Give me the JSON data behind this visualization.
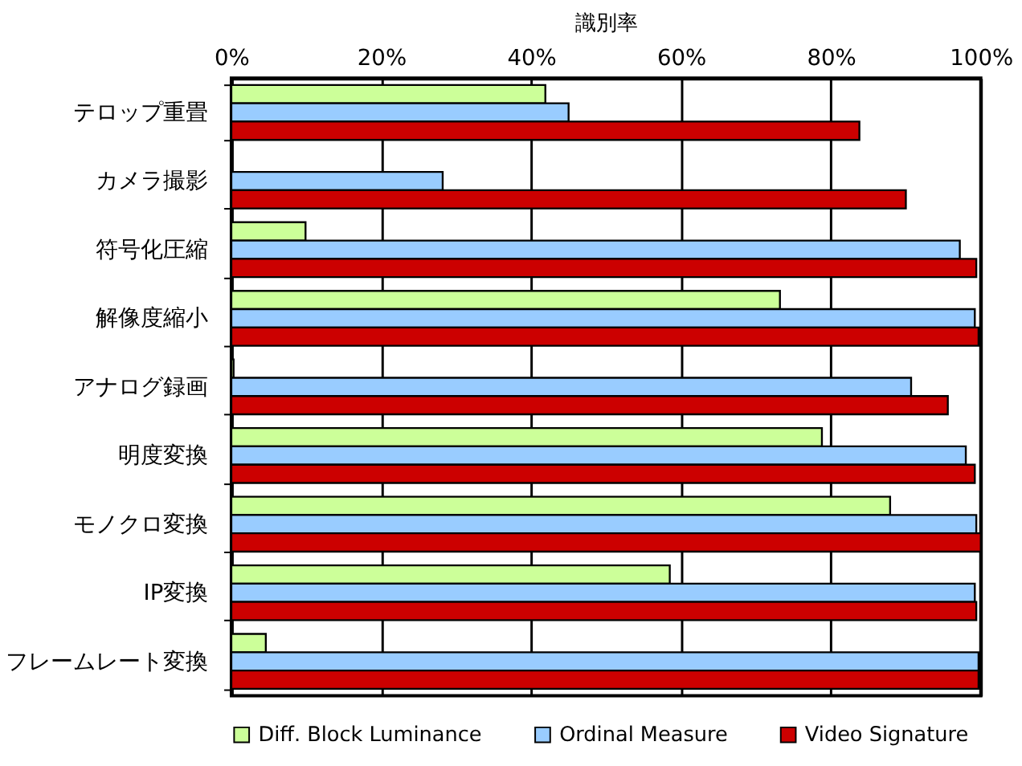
{
  "chart_data": {
    "type": "bar",
    "orientation": "horizontal",
    "xlabel": "識別率",
    "categories": [
      "テロップ重畳",
      "カメラ撮影",
      "符号化圧縮",
      "解像度縮小",
      "アナログ録画",
      "明度変換",
      "モノクロ変換",
      "IP変換",
      "フレームレート変換"
    ],
    "series": [
      {
        "name": "Diff. Block Luminance",
        "color": "#ccff99",
        "values": [
          41.9,
          null,
          9.9,
          73.2,
          0.3,
          78.8,
          87.9,
          58.5,
          4.6
        ]
      },
      {
        "name": "Ordinal Measure",
        "color": "#99ccff",
        "values": [
          45.0,
          28.2,
          97.2,
          99.2,
          90.7,
          98.0,
          99.4,
          99.2,
          99.7
        ]
      },
      {
        "name": "Video Signature",
        "color": "#cc0000",
        "values": [
          83.8,
          90.0,
          99.4,
          99.7,
          95.6,
          99.2,
          100,
          99.4,
          99.7
        ]
      }
    ],
    "xlim": [
      0,
      100
    ],
    "xticks": [
      {
        "value": 0,
        "label": "0%"
      },
      {
        "value": 20,
        "label": "20%"
      },
      {
        "value": 40,
        "label": "40%"
      },
      {
        "value": 60,
        "label": "60%"
      },
      {
        "value": 80,
        "label": "80%"
      },
      {
        "value": 100,
        "label": "100%"
      }
    ],
    "grid": "x",
    "legend": "bottom"
  }
}
